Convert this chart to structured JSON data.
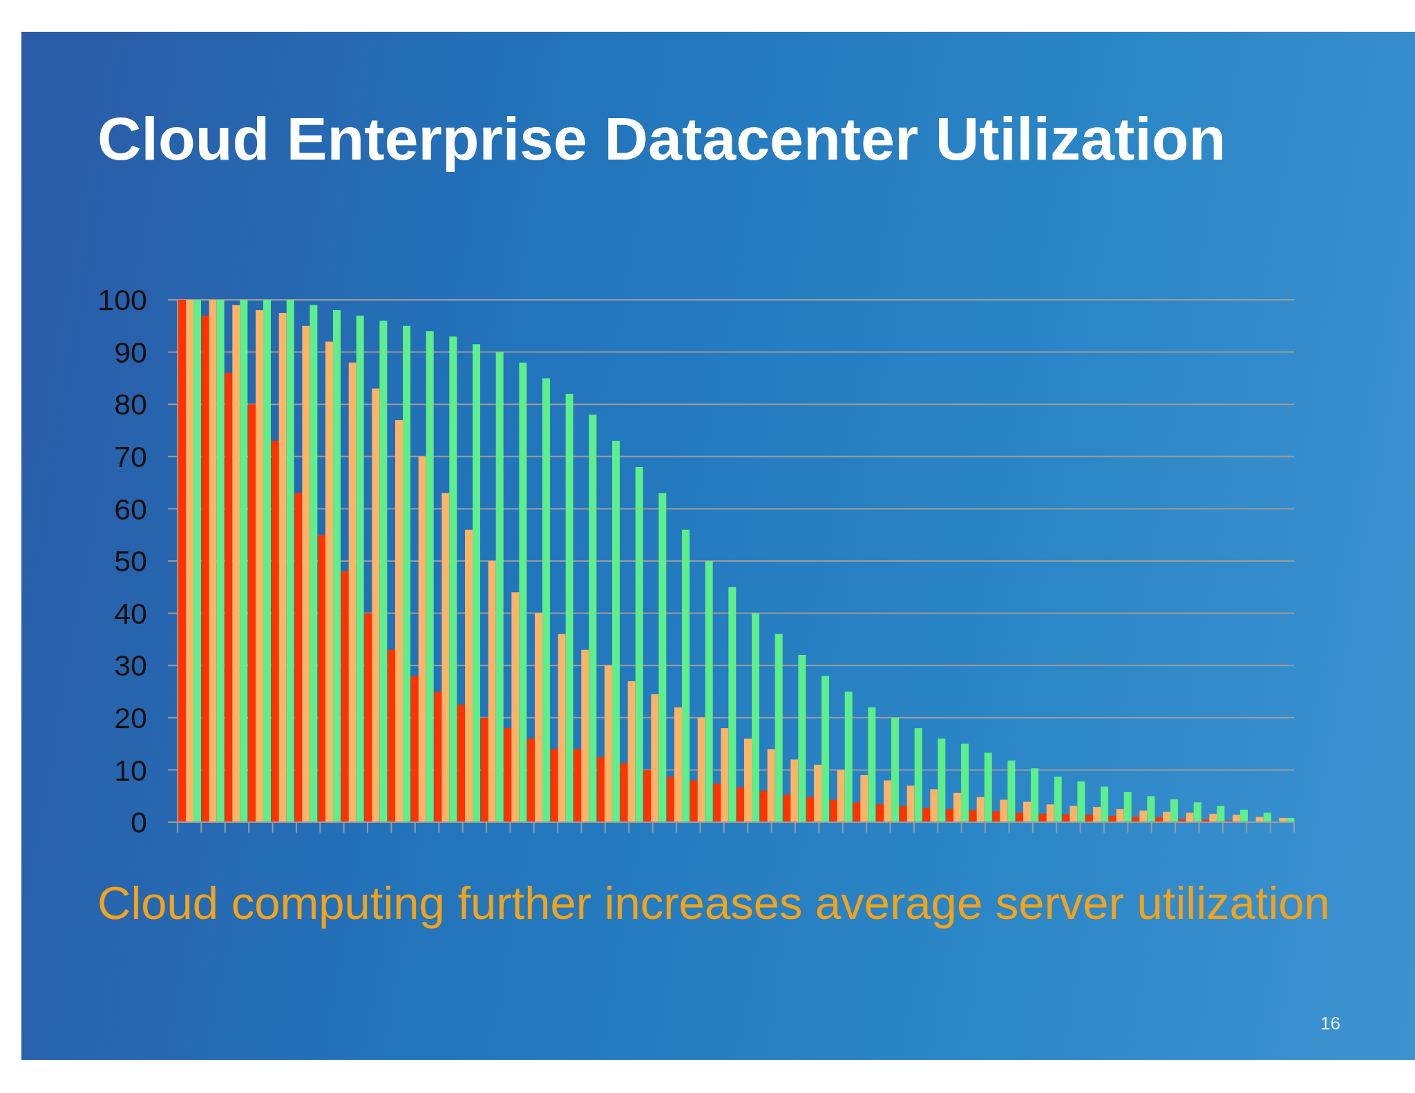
{
  "chart_data": {
    "type": "bar",
    "title": "Cloud Enterprise Datacenter Utilization",
    "categories": [
      null,
      null,
      null,
      null,
      null,
      null,
      null,
      null,
      null,
      null,
      null,
      null,
      null,
      null,
      null,
      null,
      null,
      null,
      null,
      null,
      null,
      null,
      null,
      null,
      null,
      null,
      null,
      null,
      null,
      null,
      null,
      null,
      null,
      null,
      null,
      null,
      null,
      null,
      null,
      null,
      null,
      null,
      null,
      null,
      null,
      null,
      null,
      null
    ],
    "series": [
      {
        "color": "#ff3300",
        "values": [
          100,
          97,
          86,
          80,
          73,
          63,
          55,
          48,
          40,
          33,
          28,
          25,
          22.5,
          20,
          18,
          16,
          14,
          14,
          12.5,
          11.3,
          10,
          8.7,
          8,
          7.4,
          6.7,
          6,
          5.3,
          4.8,
          4.3,
          3.8,
          3.4,
          3.1,
          2.7,
          2.5,
          2.3,
          2.1,
          1.8,
          1.6,
          1.5,
          1.4,
          1.2,
          1,
          0.9,
          0.6,
          0.5,
          0.3,
          0,
          0
        ]
      },
      {
        "color": "#ffb366",
        "values": [
          100,
          100,
          99,
          98,
          97.5,
          95,
          92,
          88,
          83,
          77,
          70,
          63,
          56,
          50,
          44,
          40,
          36,
          33,
          30,
          27,
          24.5,
          22,
          20,
          18,
          16,
          14,
          12,
          11,
          10,
          9,
          8,
          7,
          6.3,
          5.6,
          4.8,
          4.3,
          3.9,
          3.4,
          3.1,
          2.9,
          2.5,
          2.2,
          2,
          1.8,
          1.6,
          1.4,
          1,
          0.8
        ]
      },
      {
        "color": "#5eee8a",
        "values": [
          100,
          100,
          100,
          100,
          100,
          99,
          98,
          97,
          96,
          95,
          94,
          93,
          91.5,
          90,
          88,
          85,
          82,
          78,
          73,
          68,
          63,
          56,
          50,
          45,
          40,
          36,
          32,
          28,
          25,
          22,
          20,
          18,
          16,
          15,
          13.3,
          11.8,
          10.3,
          8.7,
          7.8,
          6.8,
          5.8,
          5,
          4.4,
          3.8,
          3.1,
          2.4,
          1.8,
          0.8
        ]
      }
    ],
    "ylim": [
      0,
      100
    ],
    "yticks": [
      0,
      10,
      20,
      30,
      40,
      50,
      60,
      70,
      80,
      90,
      100
    ],
    "grid": "y",
    "annotations": [
      "Cloud computing further increases average server utilization",
      "16"
    ]
  }
}
